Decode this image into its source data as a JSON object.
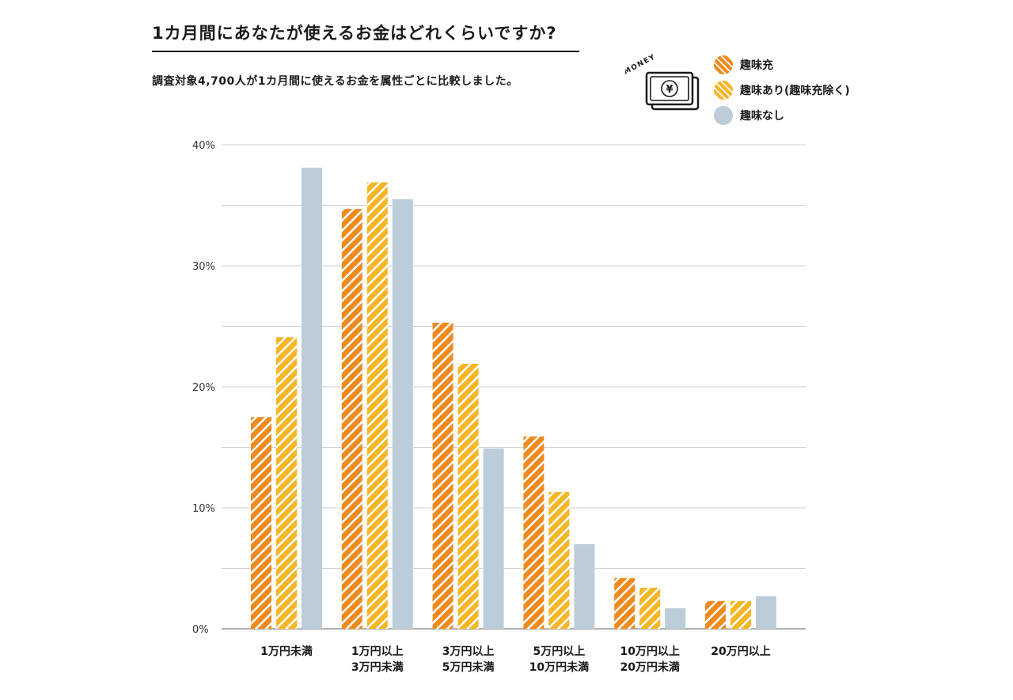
{
  "header": {
    "title": "1カ月間にあなたが使えるお金はどれくらいですか?",
    "subtitle": "調査対象4,700人が1カ月間に使えるお金を属性ごとに比較しました。"
  },
  "illustration": {
    "caption": "MONEY",
    "symbol": "¥",
    "icon": "money-bills-icon"
  },
  "colors": {
    "orange": "#ef8a1f",
    "yellow": "#f7b626",
    "blue": "#bccdd9",
    "grid": "#cccccc",
    "axis": "#999999"
  },
  "chart_data": {
    "type": "bar",
    "title": "1カ月間にあなたが使えるお金はどれくらいですか?",
    "xlabel": "",
    "ylabel": "",
    "ylim": [
      0,
      40
    ],
    "yticks": [
      {
        "value": 0,
        "label": "0%"
      },
      {
        "value": 10,
        "label": "10%"
      },
      {
        "value": 20,
        "label": "20%"
      },
      {
        "value": 30,
        "label": "30%"
      },
      {
        "value": 40,
        "label": "40%"
      }
    ],
    "grid": true,
    "legend_position": "top-right",
    "categories": [
      [
        "1万円未満"
      ],
      [
        "1万円以上",
        "3万円未満"
      ],
      [
        "3万円以上",
        "5万円未満"
      ],
      [
        "5万円以上",
        "10万円未満"
      ],
      [
        "10万円以上",
        "20万円未満"
      ],
      [
        "20万円以上"
      ]
    ],
    "series": [
      {
        "name": "趣味充",
        "color": "#ef8a1f",
        "pattern": "striped",
        "values": [
          17.5,
          34.7,
          25.3,
          15.9,
          4.2,
          2.3
        ]
      },
      {
        "name": "趣味あり(趣味充除く)",
        "color": "#f7b626",
        "pattern": "striped",
        "values": [
          24.1,
          36.9,
          21.9,
          11.3,
          3.4,
          2.3
        ]
      },
      {
        "name": "趣味なし",
        "color": "#bccdd9",
        "pattern": "solid",
        "values": [
          38.1,
          35.5,
          14.9,
          7.0,
          1.7,
          2.7
        ]
      }
    ]
  }
}
